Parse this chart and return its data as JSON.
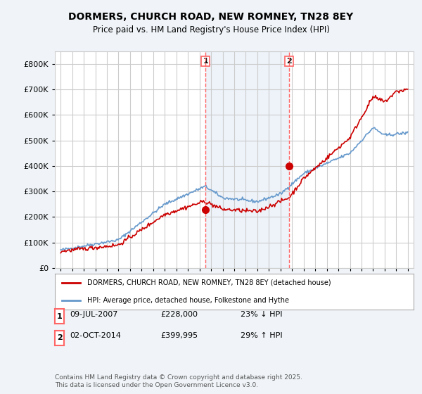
{
  "title": "DORMERS, CHURCH ROAD, NEW ROMNEY, TN28 8EY",
  "subtitle": "Price paid vs. HM Land Registry's House Price Index (HPI)",
  "legend_label_red": "DORMERS, CHURCH ROAD, NEW ROMNEY, TN28 8EY (detached house)",
  "legend_label_blue": "HPI: Average price, detached house, Folkestone and Hythe",
  "table_rows": [
    {
      "num": "1",
      "date": "09-JUL-2007",
      "price": "£228,000",
      "hpi": "23% ↓ HPI"
    },
    {
      "num": "2",
      "date": "02-OCT-2014",
      "price": "£399,995",
      "hpi": "29% ↑ HPI"
    }
  ],
  "footnote": "Contains HM Land Registry data © Crown copyright and database right 2025.\nThis data is licensed under the Open Government Licence v3.0.",
  "vline1_year": 2007.52,
  "vline2_year": 2014.75,
  "marker1_year": 2007.52,
  "marker1_price": 228000,
  "marker2_year": 2014.75,
  "marker2_price": 399995,
  "ylim": [
    0,
    850000
  ],
  "xlim_start": 1994.5,
  "xlim_end": 2025.5,
  "red_color": "#cc0000",
  "blue_color": "#6699cc",
  "vline_color": "#ff6666",
  "background_color": "#f0f4f8",
  "plot_bg_color": "#ffffff",
  "grid_color": "#cccccc"
}
